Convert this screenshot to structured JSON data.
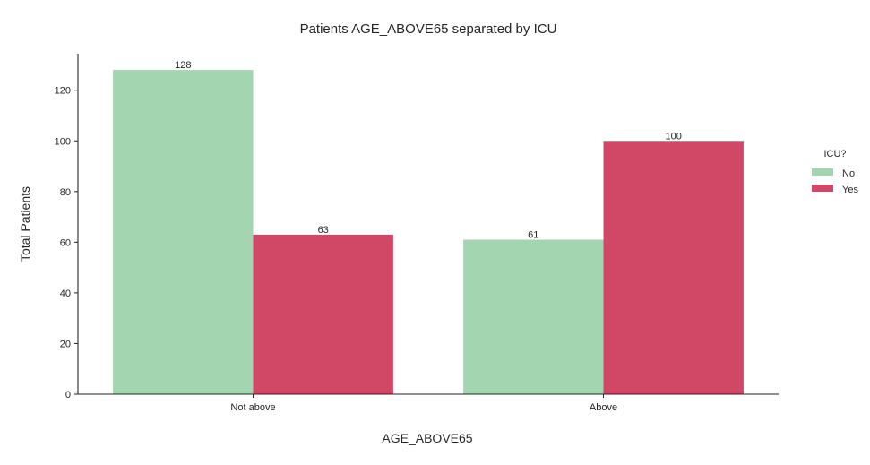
{
  "chart_data": {
    "type": "bar",
    "title": "Patients AGE_ABOVE65 separated by ICU",
    "xlabel": "AGE_ABOVE65",
    "ylabel": "Total Patients",
    "categories": [
      "Not above",
      "Above"
    ],
    "series": [
      {
        "name": "No",
        "values": [
          128,
          61
        ],
        "color": "#a3d6b0"
      },
      {
        "name": "Yes",
        "values": [
          63,
          100
        ],
        "color": "#d14867"
      }
    ],
    "ylim": [
      0,
      134.4
    ],
    "yticks": [
      0,
      20,
      40,
      60,
      80,
      100,
      120
    ],
    "grid": false,
    "legend": {
      "title": "ICU?",
      "placement": "right"
    }
  }
}
